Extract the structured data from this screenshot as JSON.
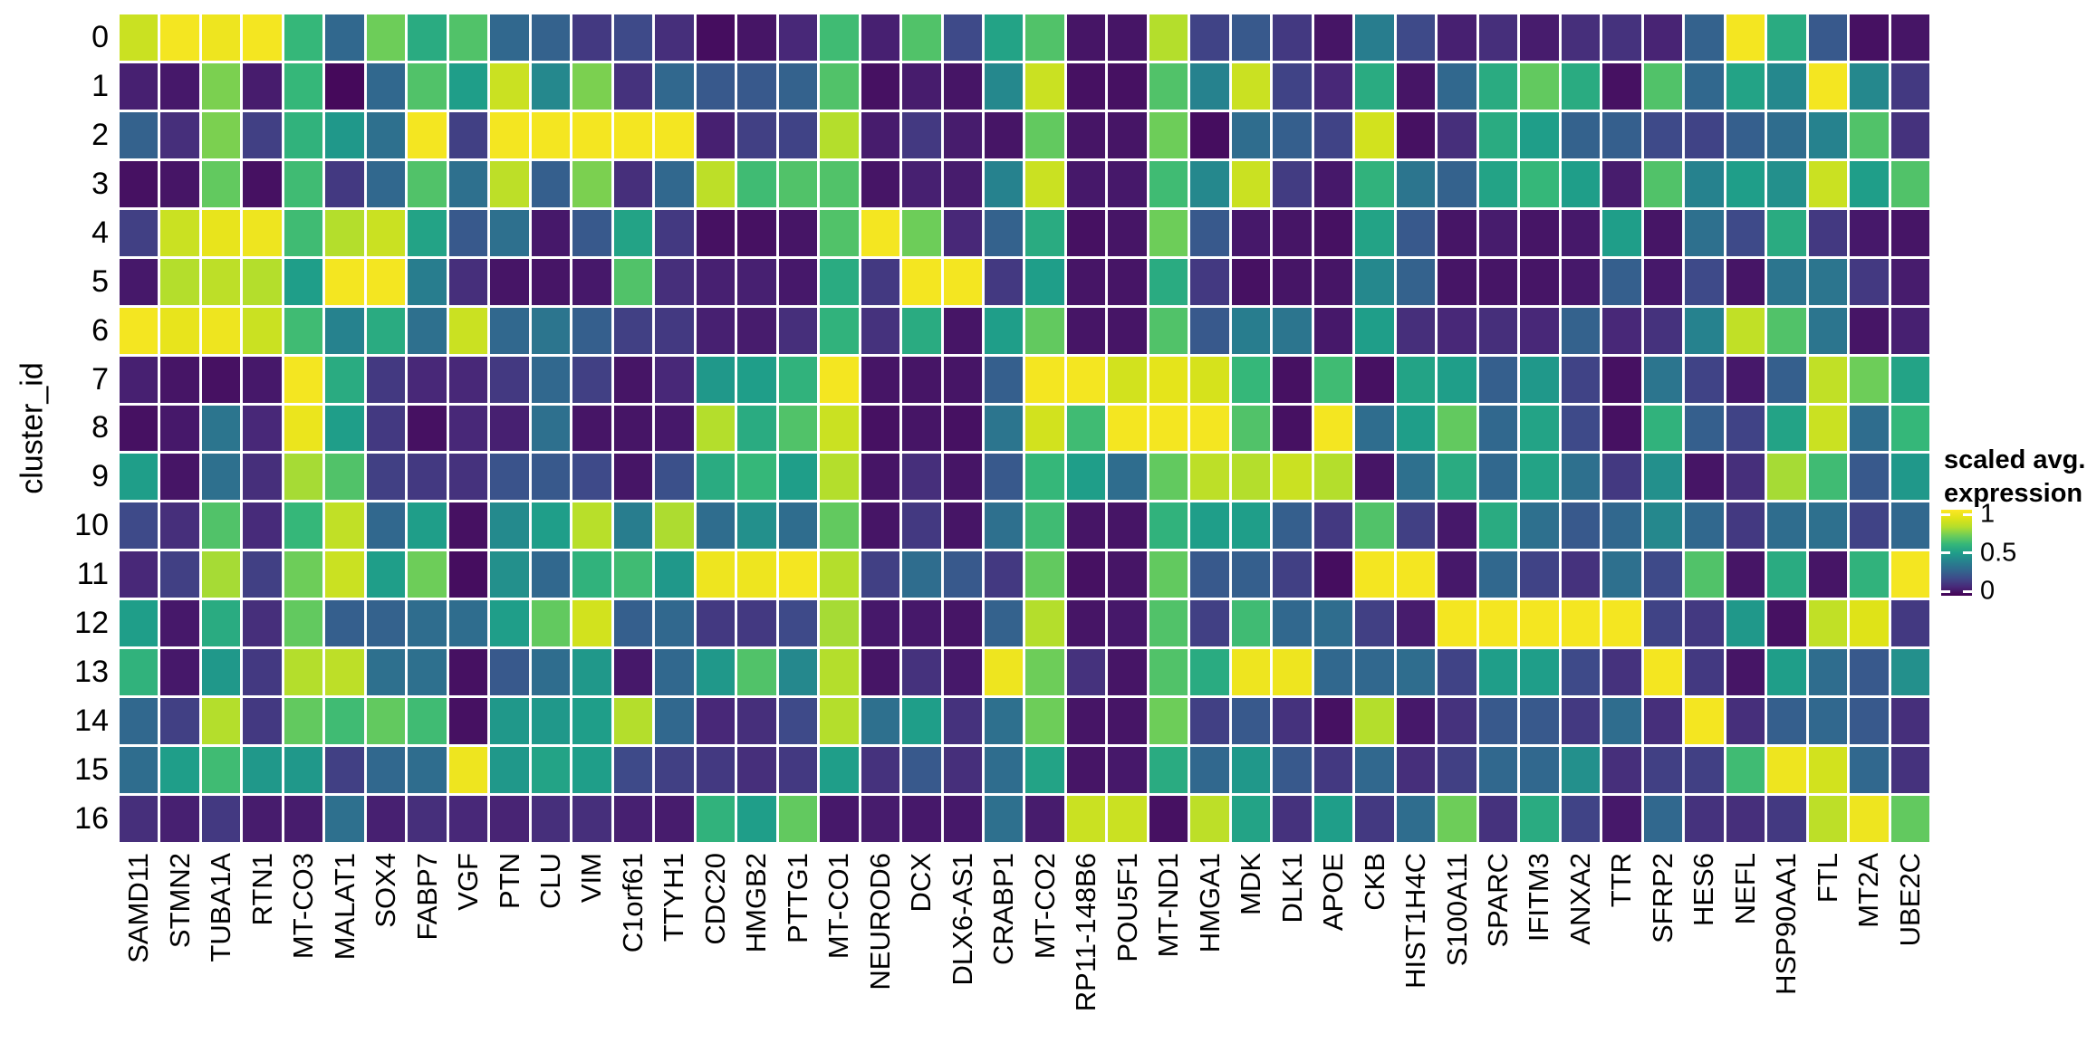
{
  "axis": {
    "y_title": "cluster_id"
  },
  "legend": {
    "title_line1": "scaled avg.",
    "title_line2": "expression",
    "ticks": [
      {
        "label": "1",
        "value": 1
      },
      {
        "label": "0.5",
        "value": 0.5
      },
      {
        "label": "0",
        "value": 0
      }
    ]
  },
  "colors": {
    "background": "#ffffff",
    "grid_gap": "#ffffff",
    "text": "#000000",
    "viridis_stops": [
      [
        68,
        1,
        84
      ],
      [
        72,
        40,
        120
      ],
      [
        62,
        74,
        137
      ],
      [
        49,
        104,
        142
      ],
      [
        38,
        130,
        142
      ],
      [
        31,
        158,
        137
      ],
      [
        53,
        183,
        121
      ],
      [
        109,
        205,
        89
      ],
      [
        180,
        222,
        44
      ],
      [
        223,
        227,
        24
      ],
      [
        253,
        231,
        37
      ]
    ]
  },
  "chart_data": {
    "type": "heatmap",
    "title": "",
    "xlabel": "",
    "ylabel": "cluster_id",
    "legend_title": "scaled avg. expression",
    "colormap": "viridis",
    "value_range": [
      0,
      1
    ],
    "grid": false,
    "legend_position": "right",
    "columns": [
      "SAMD11",
      "STMN2",
      "TUBA1A",
      "RTN1",
      "MT-CO3",
      "MALAT1",
      "SOX4",
      "FABP7",
      "VGF",
      "PTN",
      "CLU",
      "VIM",
      "C1orf61",
      "TTYH1",
      "CDC20",
      "HMGB2",
      "PTTG1",
      "MT-CO1",
      "NEUROD6",
      "DCX",
      "DLX6-AS1",
      "CRABP1",
      "MT-CO2",
      "RP11-148B6",
      "POU5F1",
      "MT-ND1",
      "HMGA1",
      "MDK",
      "DLK1",
      "APOE",
      "CKB",
      "HIST1H4C",
      "S100A11",
      "SPARC",
      "IFITM3",
      "ANXA2",
      "TTR",
      "SFRP2",
      "HES6",
      "NEFL",
      "HSP90AA1",
      "FTL",
      "MT2A",
      "UBE2C"
    ],
    "rows": [
      "0",
      "1",
      "2",
      "3",
      "4",
      "5",
      "6",
      "7",
      "8",
      "9",
      "10",
      "11",
      "12",
      "13",
      "14",
      "15",
      "16"
    ],
    "values": [
      [
        0.85,
        0.97,
        0.95,
        0.97,
        0.6,
        0.3,
        0.7,
        0.55,
        0.65,
        0.3,
        0.28,
        0.15,
        0.2,
        0.12,
        0.03,
        0.05,
        0.1,
        0.62,
        0.08,
        0.65,
        0.2,
        0.52,
        0.65,
        0.05,
        0.05,
        0.8,
        0.18,
        0.25,
        0.15,
        0.05,
        0.38,
        0.2,
        0.08,
        0.12,
        0.07,
        0.12,
        0.13,
        0.09,
        0.28,
        0.97,
        0.55,
        0.25,
        0.04,
        0.05
      ],
      [
        0.08,
        0.06,
        0.72,
        0.07,
        0.6,
        0.02,
        0.3,
        0.65,
        0.5,
        0.85,
        0.42,
        0.72,
        0.13,
        0.3,
        0.25,
        0.25,
        0.28,
        0.65,
        0.04,
        0.07,
        0.05,
        0.42,
        0.85,
        0.04,
        0.04,
        0.65,
        0.4,
        0.85,
        0.18,
        0.1,
        0.55,
        0.05,
        0.3,
        0.55,
        0.68,
        0.55,
        0.04,
        0.65,
        0.3,
        0.52,
        0.42,
        0.97,
        0.42,
        0.15
      ],
      [
        0.28,
        0.12,
        0.72,
        0.17,
        0.58,
        0.48,
        0.33,
        0.97,
        0.17,
        0.97,
        0.97,
        0.97,
        0.97,
        0.97,
        0.08,
        0.17,
        0.18,
        0.8,
        0.07,
        0.15,
        0.07,
        0.05,
        0.68,
        0.05,
        0.05,
        0.7,
        0.03,
        0.32,
        0.27,
        0.18,
        0.87,
        0.04,
        0.12,
        0.55,
        0.5,
        0.28,
        0.27,
        0.2,
        0.18,
        0.27,
        0.32,
        0.4,
        0.65,
        0.13
      ],
      [
        0.04,
        0.05,
        0.68,
        0.04,
        0.62,
        0.15,
        0.3,
        0.65,
        0.33,
        0.82,
        0.27,
        0.72,
        0.12,
        0.3,
        0.82,
        0.62,
        0.65,
        0.65,
        0.05,
        0.08,
        0.07,
        0.4,
        0.85,
        0.06,
        0.06,
        0.62,
        0.42,
        0.85,
        0.16,
        0.06,
        0.58,
        0.35,
        0.28,
        0.52,
        0.6,
        0.5,
        0.07,
        0.65,
        0.4,
        0.5,
        0.45,
        0.85,
        0.5,
        0.65
      ],
      [
        0.17,
        0.85,
        0.93,
        0.95,
        0.62,
        0.8,
        0.85,
        0.52,
        0.25,
        0.33,
        0.06,
        0.25,
        0.52,
        0.15,
        0.04,
        0.04,
        0.05,
        0.65,
        0.97,
        0.7,
        0.1,
        0.28,
        0.55,
        0.04,
        0.05,
        0.7,
        0.25,
        0.06,
        0.05,
        0.04,
        0.52,
        0.25,
        0.05,
        0.07,
        0.05,
        0.06,
        0.5,
        0.05,
        0.33,
        0.2,
        0.55,
        0.15,
        0.06,
        0.05
      ],
      [
        0.06,
        0.8,
        0.82,
        0.8,
        0.5,
        0.97,
        0.97,
        0.38,
        0.12,
        0.05,
        0.05,
        0.06,
        0.65,
        0.12,
        0.08,
        0.08,
        0.06,
        0.55,
        0.15,
        0.97,
        0.97,
        0.15,
        0.5,
        0.05,
        0.05,
        0.55,
        0.15,
        0.04,
        0.05,
        0.05,
        0.42,
        0.28,
        0.05,
        0.05,
        0.05,
        0.06,
        0.27,
        0.06,
        0.2,
        0.05,
        0.35,
        0.35,
        0.15,
        0.07
      ],
      [
        0.97,
        0.93,
        0.95,
        0.85,
        0.62,
        0.4,
        0.55,
        0.33,
        0.85,
        0.3,
        0.35,
        0.27,
        0.17,
        0.15,
        0.08,
        0.07,
        0.12,
        0.58,
        0.13,
        0.55,
        0.05,
        0.5,
        0.68,
        0.05,
        0.05,
        0.65,
        0.25,
        0.38,
        0.35,
        0.06,
        0.5,
        0.12,
        0.1,
        0.12,
        0.1,
        0.28,
        0.1,
        0.13,
        0.4,
        0.83,
        0.65,
        0.35,
        0.05,
        0.08
      ],
      [
        0.08,
        0.05,
        0.04,
        0.06,
        0.97,
        0.55,
        0.15,
        0.1,
        0.1,
        0.15,
        0.3,
        0.17,
        0.05,
        0.1,
        0.48,
        0.5,
        0.58,
        0.97,
        0.05,
        0.05,
        0.05,
        0.27,
        0.97,
        0.97,
        0.87,
        0.92,
        0.88,
        0.6,
        0.04,
        0.62,
        0.04,
        0.52,
        0.5,
        0.27,
        0.48,
        0.18,
        0.04,
        0.35,
        0.18,
        0.06,
        0.27,
        0.83,
        0.7,
        0.52
      ],
      [
        0.04,
        0.06,
        0.35,
        0.1,
        0.94,
        0.5,
        0.15,
        0.04,
        0.1,
        0.08,
        0.33,
        0.05,
        0.05,
        0.06,
        0.8,
        0.55,
        0.65,
        0.85,
        0.04,
        0.05,
        0.04,
        0.35,
        0.87,
        0.62,
        0.97,
        0.97,
        0.97,
        0.65,
        0.04,
        0.97,
        0.32,
        0.5,
        0.68,
        0.3,
        0.52,
        0.2,
        0.04,
        0.58,
        0.27,
        0.18,
        0.52,
        0.85,
        0.32,
        0.6
      ],
      [
        0.5,
        0.05,
        0.33,
        0.12,
        0.78,
        0.65,
        0.17,
        0.15,
        0.13,
        0.23,
        0.25,
        0.2,
        0.05,
        0.22,
        0.55,
        0.6,
        0.5,
        0.8,
        0.05,
        0.12,
        0.05,
        0.25,
        0.6,
        0.5,
        0.32,
        0.68,
        0.82,
        0.8,
        0.85,
        0.8,
        0.05,
        0.33,
        0.55,
        0.3,
        0.52,
        0.33,
        0.15,
        0.45,
        0.05,
        0.12,
        0.78,
        0.62,
        0.25,
        0.48
      ],
      [
        0.2,
        0.12,
        0.65,
        0.11,
        0.6,
        0.83,
        0.3,
        0.5,
        0.04,
        0.43,
        0.5,
        0.81,
        0.38,
        0.79,
        0.32,
        0.45,
        0.32,
        0.68,
        0.05,
        0.15,
        0.05,
        0.33,
        0.62,
        0.05,
        0.05,
        0.58,
        0.5,
        0.5,
        0.27,
        0.15,
        0.65,
        0.17,
        0.06,
        0.55,
        0.33,
        0.25,
        0.3,
        0.42,
        0.3,
        0.15,
        0.32,
        0.33,
        0.18,
        0.3
      ],
      [
        0.1,
        0.17,
        0.78,
        0.17,
        0.7,
        0.85,
        0.5,
        0.7,
        0.03,
        0.45,
        0.3,
        0.58,
        0.62,
        0.48,
        0.95,
        0.95,
        0.97,
        0.8,
        0.17,
        0.32,
        0.25,
        0.15,
        0.68,
        0.04,
        0.05,
        0.68,
        0.25,
        0.27,
        0.17,
        0.03,
        0.97,
        0.97,
        0.06,
        0.3,
        0.18,
        0.13,
        0.33,
        0.2,
        0.65,
        0.05,
        0.55,
        0.05,
        0.58,
        0.97
      ],
      [
        0.5,
        0.06,
        0.55,
        0.12,
        0.68,
        0.27,
        0.28,
        0.32,
        0.32,
        0.5,
        0.68,
        0.87,
        0.27,
        0.3,
        0.15,
        0.15,
        0.2,
        0.78,
        0.06,
        0.06,
        0.05,
        0.28,
        0.8,
        0.05,
        0.06,
        0.65,
        0.17,
        0.62,
        0.3,
        0.32,
        0.17,
        0.07,
        0.97,
        0.97,
        0.97,
        0.97,
        0.97,
        0.18,
        0.15,
        0.48,
        0.04,
        0.83,
        0.9,
        0.15
      ],
      [
        0.58,
        0.06,
        0.48,
        0.15,
        0.8,
        0.82,
        0.33,
        0.33,
        0.04,
        0.25,
        0.32,
        0.48,
        0.06,
        0.3,
        0.48,
        0.65,
        0.42,
        0.8,
        0.05,
        0.13,
        0.06,
        0.95,
        0.7,
        0.13,
        0.05,
        0.65,
        0.55,
        0.95,
        0.95,
        0.3,
        0.3,
        0.32,
        0.18,
        0.5,
        0.5,
        0.2,
        0.13,
        0.97,
        0.15,
        0.05,
        0.5,
        0.32,
        0.25,
        0.45
      ],
      [
        0.3,
        0.17,
        0.8,
        0.15,
        0.68,
        0.62,
        0.68,
        0.62,
        0.04,
        0.48,
        0.48,
        0.5,
        0.8,
        0.3,
        0.1,
        0.12,
        0.2,
        0.8,
        0.33,
        0.5,
        0.13,
        0.33,
        0.7,
        0.05,
        0.05,
        0.7,
        0.17,
        0.25,
        0.13,
        0.04,
        0.8,
        0.06,
        0.13,
        0.25,
        0.25,
        0.15,
        0.32,
        0.12,
        0.97,
        0.12,
        0.27,
        0.3,
        0.25,
        0.12
      ],
      [
        0.32,
        0.5,
        0.62,
        0.48,
        0.48,
        0.17,
        0.3,
        0.32,
        0.95,
        0.48,
        0.52,
        0.5,
        0.2,
        0.17,
        0.15,
        0.12,
        0.15,
        0.5,
        0.13,
        0.25,
        0.12,
        0.32,
        0.52,
        0.05,
        0.06,
        0.55,
        0.3,
        0.48,
        0.25,
        0.15,
        0.3,
        0.12,
        0.17,
        0.3,
        0.3,
        0.45,
        0.12,
        0.17,
        0.17,
        0.62,
        0.95,
        0.87,
        0.3,
        0.13
      ],
      [
        0.12,
        0.08,
        0.15,
        0.07,
        0.07,
        0.33,
        0.08,
        0.12,
        0.1,
        0.09,
        0.12,
        0.12,
        0.08,
        0.07,
        0.58,
        0.5,
        0.68,
        0.06,
        0.07,
        0.06,
        0.06,
        0.33,
        0.07,
        0.85,
        0.85,
        0.04,
        0.82,
        0.52,
        0.13,
        0.5,
        0.15,
        0.32,
        0.7,
        0.13,
        0.55,
        0.18,
        0.06,
        0.3,
        0.13,
        0.12,
        0.15,
        0.82,
        0.95,
        0.68
      ]
    ]
  }
}
